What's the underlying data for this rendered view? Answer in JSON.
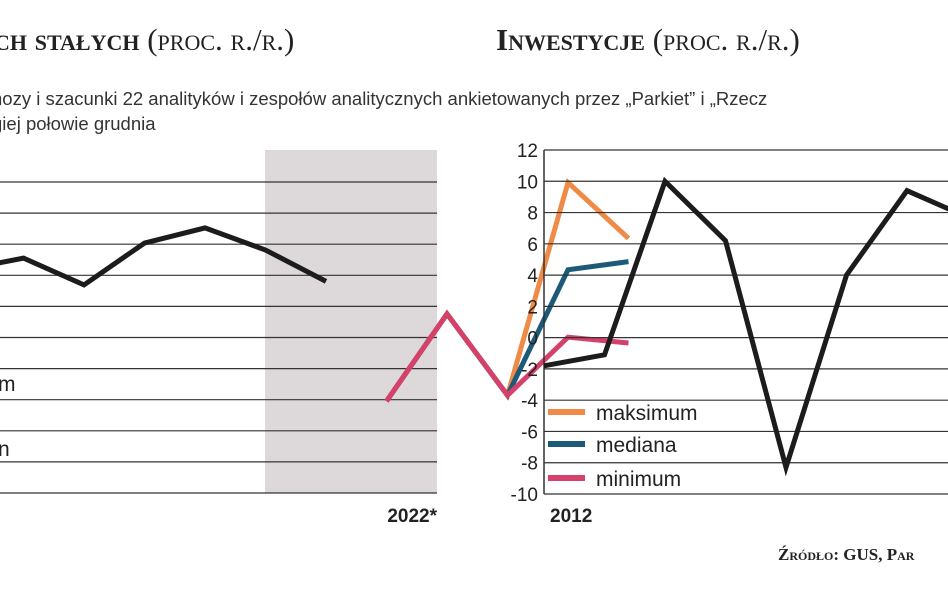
{
  "left_panel": {
    "title": "ch stałych",
    "title_unit": "(proc. r./r.)",
    "subtitle_line1": "nozy i szacunki 22 analityków i zespołów analitycznych ankietowanych przez „Parkiet” i „Rzecz",
    "subtitle_line2": "giej połowie grudnia",
    "legend_partial": [
      "m",
      "n"
    ]
  },
  "right_panel": {
    "title": "Inwestycje",
    "title_unit": "(proc. r./r.)"
  },
  "source": "Źródło: GUS, Par",
  "colors": {
    "history": "#1c1c1c",
    "maksimum": "#ef8a47",
    "mediana": "#1d5a79",
    "minimum": "#d6416b",
    "forecast_bg": "#ddd9da",
    "grid": "#333333"
  },
  "chart_data": [
    {
      "type": "line",
      "panel": "left",
      "y_tick_labels": [],
      "x_tick_labels": [
        "2022*"
      ],
      "forecast_shading": true,
      "series": [
        {
          "key": "history",
          "x": [
            0,
            1,
            2,
            3,
            4,
            5,
            6
          ],
          "values": [
            7.3,
            8.3,
            6.0,
            9.6,
            10.9,
            9.0,
            6.3
          ]
        },
        {
          "name": "maksimum",
          "x": [
            7,
            8,
            9,
            10,
            11
          ],
          "values": [
            -4.0,
            3.5,
            -3.5,
            14.8,
            10.0
          ]
        },
        {
          "name": "mediana",
          "x": [
            7,
            8,
            9,
            10,
            11
          ],
          "values": [
            -4.0,
            3.5,
            -3.5,
            7.3,
            8.0
          ]
        },
        {
          "name": "minimum",
          "x": [
            7,
            8,
            9,
            10,
            11
          ],
          "values": [
            -4.0,
            3.5,
            -3.5,
            1.5,
            1.0
          ]
        }
      ]
    },
    {
      "type": "line",
      "panel": "right",
      "ylim": [
        -10,
        12
      ],
      "y_ticks": [
        12,
        10,
        8,
        6,
        4,
        2,
        0,
        -2,
        -4,
        -6,
        -8,
        -10
      ],
      "x_tick_labels": [
        "2012"
      ],
      "grid": true,
      "legend": [
        "maksimum",
        "mediana",
        "minimum"
      ],
      "series": [
        {
          "key": "history",
          "x": [
            0,
            1,
            2,
            3,
            4,
            5,
            6,
            7
          ],
          "values": [
            -1.8,
            -1.1,
            10.0,
            6.2,
            -8.3,
            4.0,
            9.4,
            7.7
          ]
        }
      ]
    }
  ]
}
